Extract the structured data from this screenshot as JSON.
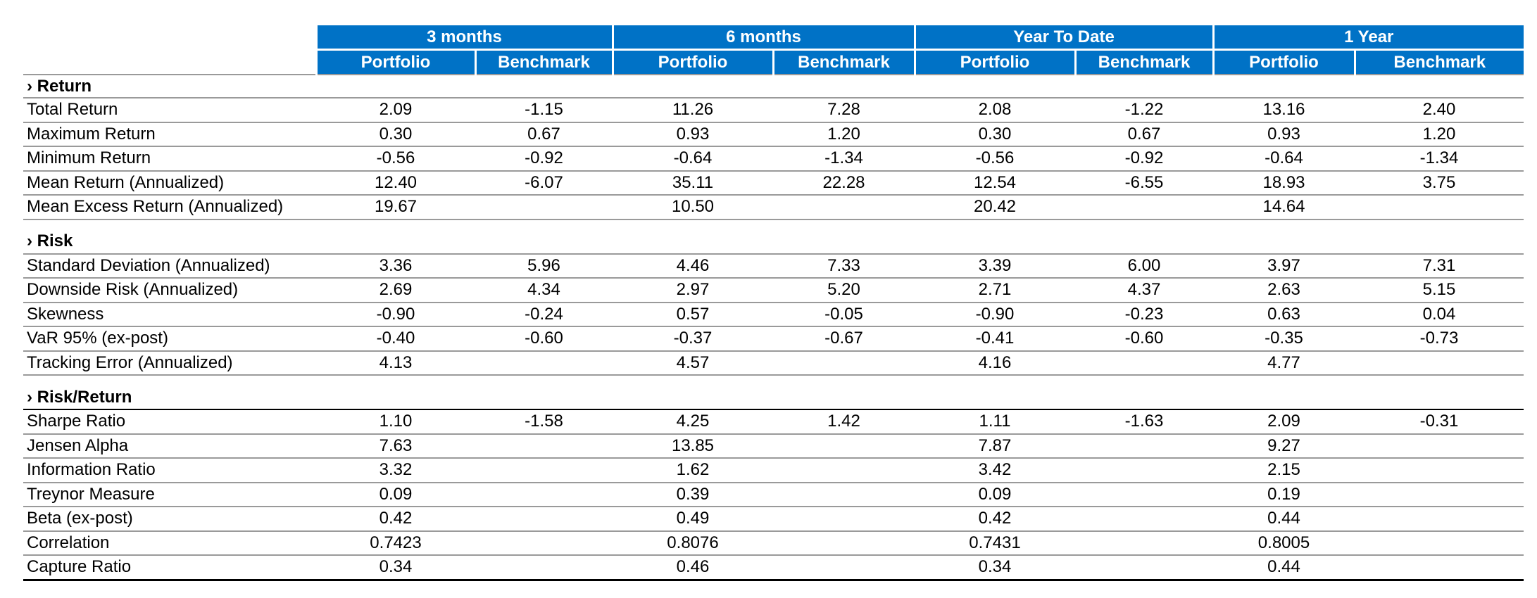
{
  "periods": [
    "3 months",
    "6 months",
    "Year To Date",
    "1 Year"
  ],
  "subheaders": {
    "portfolio": "Portfolio",
    "benchmark": "Benchmark"
  },
  "sections": [
    {
      "title": "› Return",
      "rows": [
        {
          "label": "Total Return",
          "values": [
            "2.09",
            "-1.15",
            "11.26",
            "7.28",
            "2.08",
            "-1.22",
            "13.16",
            "2.40"
          ]
        },
        {
          "label": "Maximum Return",
          "values": [
            "0.30",
            "0.67",
            "0.93",
            "1.20",
            "0.30",
            "0.67",
            "0.93",
            "1.20"
          ]
        },
        {
          "label": "Minimum Return",
          "values": [
            "-0.56",
            "-0.92",
            "-0.64",
            "-1.34",
            "-0.56",
            "-0.92",
            "-0.64",
            "-1.34"
          ]
        },
        {
          "label": "Mean Return (Annualized)",
          "values": [
            "12.40",
            "-6.07",
            "35.11",
            "22.28",
            "12.54",
            "-6.55",
            "18.93",
            "3.75"
          ]
        },
        {
          "label": "Mean Excess Return (Annualized)",
          "values": [
            "19.67",
            "",
            "10.50",
            "",
            "20.42",
            "",
            "14.64",
            ""
          ]
        }
      ]
    },
    {
      "title": "› Risk",
      "rows": [
        {
          "label": "Standard Deviation (Annualized)",
          "values": [
            "3.36",
            "5.96",
            "4.46",
            "7.33",
            "3.39",
            "6.00",
            "3.97",
            "7.31"
          ]
        },
        {
          "label": "Downside Risk (Annualized)",
          "values": [
            "2.69",
            "4.34",
            "2.97",
            "5.20",
            "2.71",
            "4.37",
            "2.63",
            "5.15"
          ]
        },
        {
          "label": "Skewness",
          "values": [
            "-0.90",
            "-0.24",
            "0.57",
            "-0.05",
            "-0.90",
            "-0.23",
            "0.63",
            "0.04"
          ]
        },
        {
          "label": "VaR 95% (ex-post)",
          "values": [
            "-0.40",
            "-0.60",
            "-0.37",
            "-0.67",
            "-0.41",
            "-0.60",
            "-0.35",
            "-0.73"
          ]
        },
        {
          "label": "Tracking Error (Annualized)",
          "values": [
            "4.13",
            "",
            "4.57",
            "",
            "4.16",
            "",
            "4.77",
            ""
          ]
        }
      ]
    },
    {
      "title": "› Risk/Return",
      "rows": [
        {
          "label": "Sharpe Ratio",
          "values": [
            "1.10",
            "-1.58",
            "4.25",
            "1.42",
            "1.11",
            "-1.63",
            "2.09",
            "-0.31"
          ]
        },
        {
          "label": "Jensen Alpha",
          "values": [
            "7.63",
            "",
            "13.85",
            "",
            "7.87",
            "",
            "9.27",
            ""
          ]
        },
        {
          "label": "Information Ratio",
          "values": [
            "3.32",
            "",
            "1.62",
            "",
            "3.42",
            "",
            "2.15",
            ""
          ]
        },
        {
          "label": "Treynor Measure",
          "values": [
            "0.09",
            "",
            "0.39",
            "",
            "0.09",
            "",
            "0.19",
            ""
          ]
        },
        {
          "label": "Beta (ex-post)",
          "values": [
            "0.42",
            "",
            "0.49",
            "",
            "0.42",
            "",
            "0.44",
            ""
          ]
        },
        {
          "label": "Correlation",
          "values": [
            "0.7423",
            "",
            "0.8076",
            "",
            "0.7431",
            "",
            "0.8005",
            ""
          ]
        },
        {
          "label": "Capture Ratio",
          "values": [
            "0.34",
            "",
            "0.46",
            "",
            "0.34",
            "",
            "0.44",
            ""
          ]
        }
      ]
    }
  ],
  "colors": {
    "header_bg": "#0072c6",
    "header_text": "#ffffff",
    "rule": "#9a9a9a"
  }
}
